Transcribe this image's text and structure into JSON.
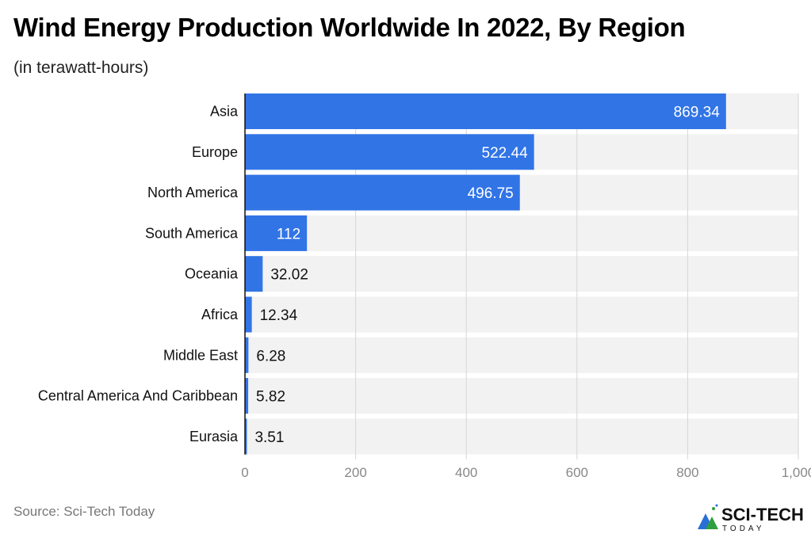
{
  "chart_data": {
    "type": "bar",
    "orientation": "horizontal",
    "title": "Wind Energy Production Worldwide In 2022, By Region",
    "subtitle": "(in terawatt-hours)",
    "categories": [
      "Asia",
      "Europe",
      "North America",
      "South America",
      "Oceania",
      "Africa",
      "Middle East",
      "Central America And Caribbean",
      "Eurasia"
    ],
    "values": [
      869.34,
      522.44,
      496.75,
      112,
      32.02,
      12.34,
      6.28,
      5.82,
      3.51
    ],
    "value_labels": [
      "869.34",
      "522.44",
      "496.75",
      "112",
      "32.02",
      "12.34",
      "6.28",
      "5.82",
      "3.51"
    ],
    "xlim": [
      0,
      1000
    ],
    "xticks": [
      0,
      200,
      400,
      600,
      800,
      1000
    ],
    "xtick_labels": [
      "0",
      "200",
      "400",
      "600",
      "800",
      "1,000"
    ],
    "grid": true,
    "bar_color": "#3174e6",
    "band_color": "#f2f2f2"
  },
  "footer": {
    "source": "Sci-Tech Today",
    "source_label": "Source: Sci-Tech Today",
    "logo_text": "SCI-TECH",
    "logo_subtext": "TODAY"
  }
}
